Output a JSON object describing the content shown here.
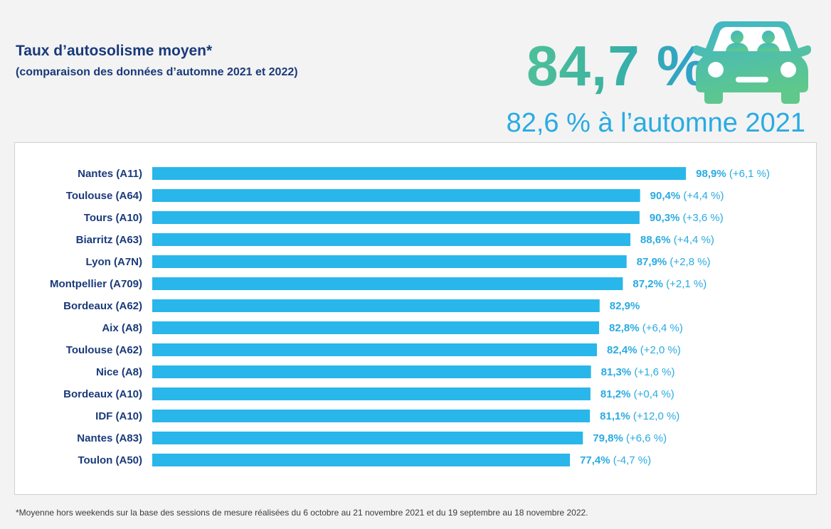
{
  "header": {
    "title": "Taux d’autosolisme moyen*",
    "subtitle": "(comparaison des données d’automne 2021 et 2022)",
    "headline_value": "84,7 %",
    "previous_value": "82,6 % à l’automne 2021",
    "icon": "car-with-passengers-icon"
  },
  "chart_data": {
    "type": "bar",
    "orientation": "horizontal",
    "title": "Taux d’autosolisme moyen*",
    "subtitle": "(comparaison des données d’automne 2021 et 2022)",
    "xlabel": "",
    "ylabel": "",
    "xlim": [
      0,
      100
    ],
    "grid": false,
    "categories": [
      "Nantes (A11)",
      "Toulouse (A64)",
      "Tours (A10)",
      "Biarritz (A63)",
      "Lyon (A7N)",
      "Montpellier (A709)",
      "Bordeaux (A62)",
      "Aix (A8)",
      "Toulouse (A62)",
      "Nice (A8)",
      "Bordeaux (A10)",
      "IDF (A10)",
      "Nantes (A83)",
      "Toulon (A50)"
    ],
    "values": [
      98.9,
      90.4,
      90.3,
      88.6,
      87.9,
      87.2,
      82.9,
      82.8,
      82.4,
      81.3,
      81.2,
      81.1,
      79.8,
      77.4
    ],
    "value_labels": [
      "98,9%",
      "90,4%",
      "90,3%",
      "88,6%",
      "87,9%",
      "87,2%",
      "82,9%",
      "82,8%",
      "82,4%",
      "81,3%",
      "81,2%",
      "81,1%",
      "79,8%",
      "77,4%"
    ],
    "change_labels": [
      "(+6,1 %)",
      "(+4,4 %)",
      "(+3,6 %)",
      "(+4,4 %)",
      "(+2,8 %)",
      "(+2,1 %)",
      "",
      "(+6,4 %)",
      "(+2,0 %)",
      "(+1,6 %)",
      "(+0,4 %)",
      "(+12,0 %)",
      "(+6,6 %)",
      "(-4,7 %)"
    ],
    "colors": {
      "bar": "#29b6ea",
      "category_label": "#1a3a7a",
      "value_label": "#29abe2",
      "change_label": "#29abe2"
    }
  },
  "footnote": "*Moyenne hors weekends sur la base des sessions de mesure réalisées du 6 octobre au 21 novembre 2021 et du 19 septembre au 18 novembre 2022."
}
